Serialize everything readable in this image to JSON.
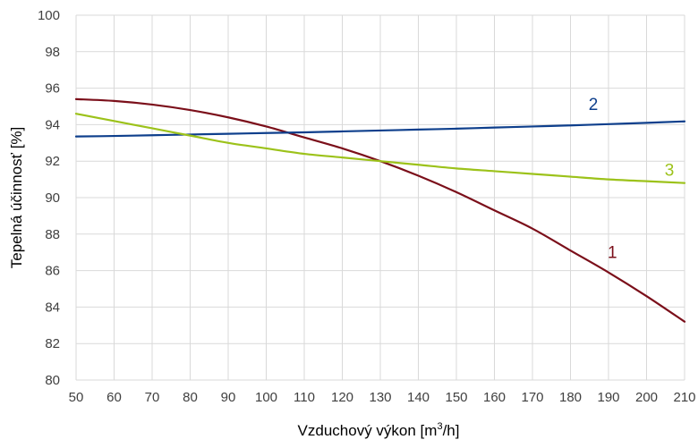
{
  "chart_data": {
    "type": "line",
    "title": "",
    "xlabel_main": "Vzduchový výkon [m",
    "xlabel_sup": "3",
    "xlabel_tail": "/h]",
    "ylabel": "Tepelná účinnosť [%]",
    "xlim": [
      50,
      210
    ],
    "ylim": [
      80,
      100
    ],
    "x_ticks": [
      50,
      60,
      70,
      80,
      90,
      100,
      110,
      120,
      130,
      140,
      150,
      160,
      170,
      180,
      190,
      200,
      210
    ],
    "y_ticks": [
      80,
      82,
      84,
      86,
      88,
      90,
      92,
      94,
      96,
      98,
      100
    ],
    "grid": true,
    "series": [
      {
        "name": "1",
        "color": "#7b0f1a",
        "label_at": [
          191,
          86.7
        ],
        "points": [
          [
            50,
            95.4
          ],
          [
            60,
            95.3
          ],
          [
            70,
            95.1
          ],
          [
            80,
            94.8
          ],
          [
            90,
            94.4
          ],
          [
            100,
            93.9
          ],
          [
            110,
            93.3
          ],
          [
            120,
            92.7
          ],
          [
            130,
            92.0
          ],
          [
            140,
            91.2
          ],
          [
            150,
            90.3
          ],
          [
            160,
            89.3
          ],
          [
            170,
            88.3
          ],
          [
            180,
            87.1
          ],
          [
            190,
            85.9
          ],
          [
            200,
            84.6
          ],
          [
            210,
            83.2
          ]
        ]
      },
      {
        "name": "2",
        "color": "#0e3f8c",
        "label_at": [
          186,
          94.8
        ],
        "points": [
          [
            50,
            93.35
          ],
          [
            60,
            93.38
          ],
          [
            70,
            93.42
          ],
          [
            80,
            93.46
          ],
          [
            90,
            93.5
          ],
          [
            100,
            93.54
          ],
          [
            110,
            93.58
          ],
          [
            120,
            93.63
          ],
          [
            130,
            93.68
          ],
          [
            140,
            93.73
          ],
          [
            150,
            93.78
          ],
          [
            160,
            93.84
          ],
          [
            170,
            93.9
          ],
          [
            180,
            93.96
          ],
          [
            190,
            94.03
          ],
          [
            200,
            94.1
          ],
          [
            210,
            94.18
          ]
        ]
      },
      {
        "name": "3",
        "color": "#9cc21a",
        "label_at": [
          206,
          91.2
        ],
        "points": [
          [
            50,
            94.6
          ],
          [
            60,
            94.2
          ],
          [
            70,
            93.8
          ],
          [
            80,
            93.4
          ],
          [
            90,
            93.0
          ],
          [
            100,
            92.7
          ],
          [
            110,
            92.4
          ],
          [
            120,
            92.2
          ],
          [
            130,
            92.0
          ],
          [
            140,
            91.8
          ],
          [
            150,
            91.6
          ],
          [
            160,
            91.45
          ],
          [
            170,
            91.3
          ],
          [
            180,
            91.15
          ],
          [
            190,
            91.0
          ],
          [
            200,
            90.9
          ],
          [
            210,
            90.8
          ]
        ]
      }
    ]
  }
}
